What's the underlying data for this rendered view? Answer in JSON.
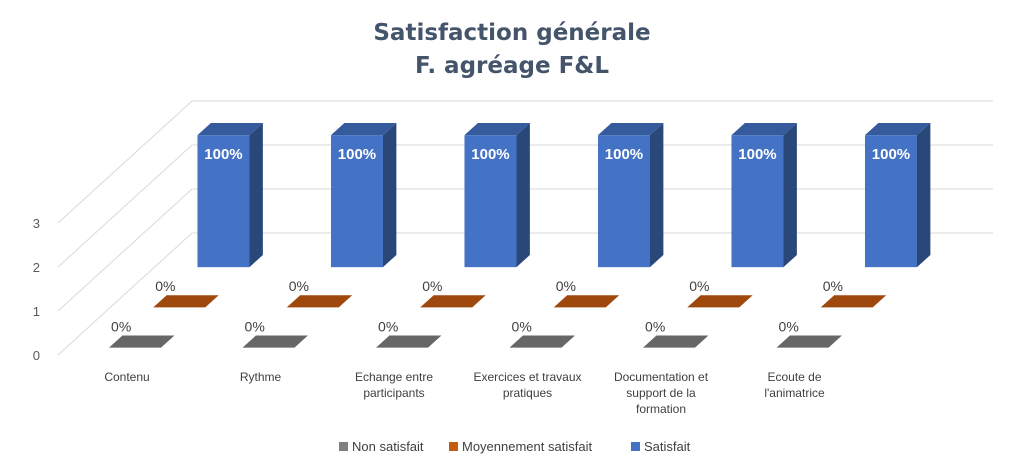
{
  "chart_data": {
    "type": "bar",
    "title": "Satisfaction générale",
    "subtitle": "F. agréage F&L",
    "categories": [
      "Contenu",
      "Rythme",
      "Echange entre participants",
      "Exercices et travaux pratiques",
      "Documentation et support de la formation",
      "Ecoute de l'animatrice"
    ],
    "category_lines": [
      [
        "Contenu"
      ],
      [
        "Rythme"
      ],
      [
        "Echange entre",
        "participants"
      ],
      [
        "Exercices et travaux",
        "pratiques"
      ],
      [
        "Documentation et",
        "support de la",
        "formation"
      ],
      [
        "Ecoute de",
        "l'animatrice"
      ]
    ],
    "series": [
      {
        "name": "Non satisfait",
        "values": [
          0,
          0,
          0,
          0,
          0,
          0
        ],
        "labels": [
          "0%",
          "0%",
          "0%",
          "0%",
          "0%",
          "0%"
        ],
        "color": "#808080"
      },
      {
        "name": "Moyennement satisfait",
        "values": [
          0,
          0,
          0,
          0,
          0,
          0
        ],
        "labels": [
          "0%",
          "0%",
          "0%",
          "0%",
          "0%",
          "0%"
        ],
        "color": "#c55a11"
      },
      {
        "name": "Satisfait",
        "values": [
          3,
          3,
          3,
          3,
          3,
          3
        ],
        "labels": [
          "100%",
          "100%",
          "100%",
          "100%",
          "100%",
          "100%"
        ],
        "color": "#4472c4"
      }
    ],
    "y_ticks": [
      "0",
      "1",
      "2",
      "3"
    ],
    "ylim": [
      0,
      3
    ],
    "grid": true,
    "legend_position": "bottom",
    "style": "3d-column"
  }
}
